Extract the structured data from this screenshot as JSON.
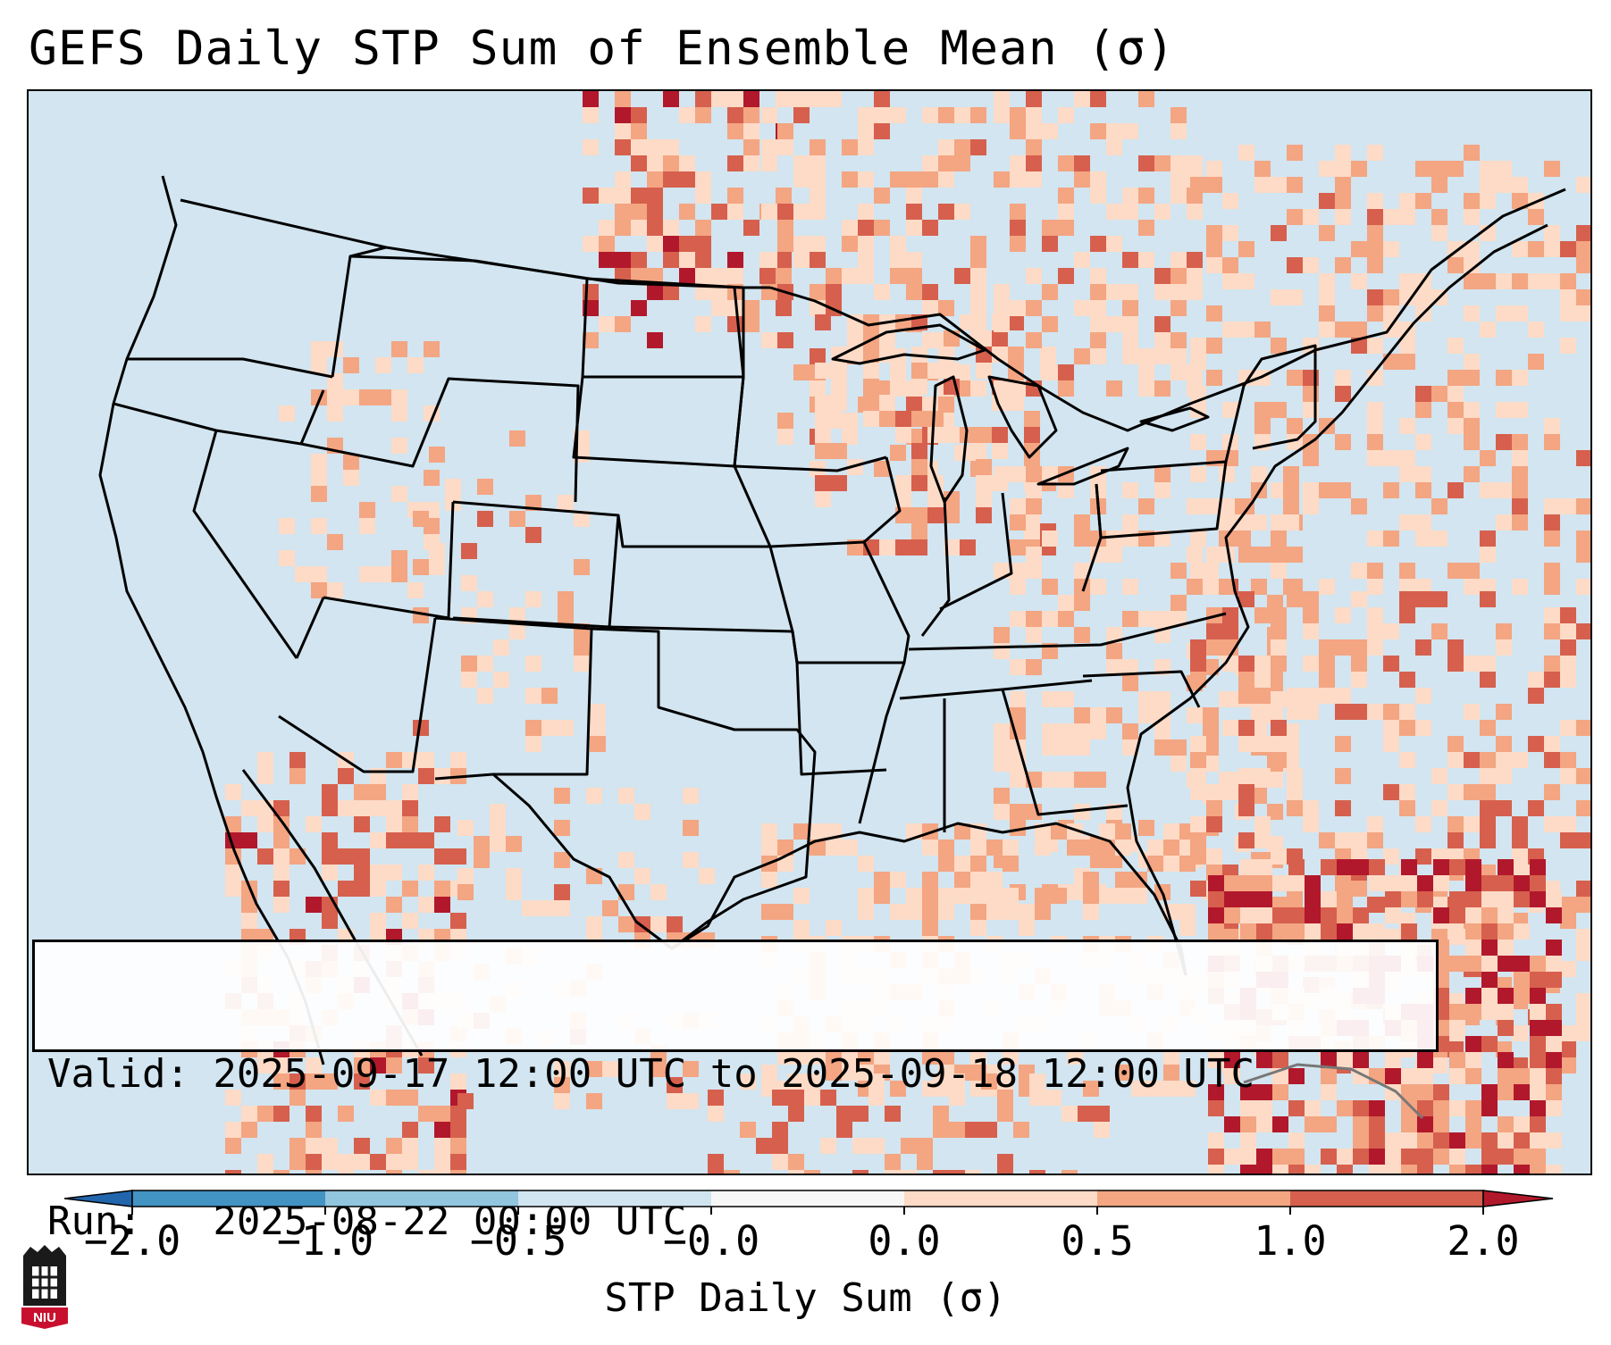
{
  "title": "GEFS Daily STP Sum of Ensemble Mean (σ)",
  "info": {
    "valid_line": "Valid: 2025-09-17 12:00 UTC to 2025-09-18 12:00 UTC",
    "run_line": "Run:   2025-08-22 00:00 UTC"
  },
  "colorbar": {
    "label": "STP Daily Sum (σ)",
    "ticks": [
      "−2.0",
      "−1.0",
      "−0.5",
      "−0.0",
      "0.0",
      "0.5",
      "1.0",
      "2.0"
    ],
    "colors": {
      "below": "#2166ac",
      "c1": "#4393c3",
      "c2": "#92c5de",
      "c3": "#d1e5f0",
      "c4": "#f7f7f7",
      "c5": "#fddbc7",
      "c6": "#f4a582",
      "c7": "#d6604d",
      "above": "#b2182b"
    }
  },
  "logo": {
    "text": "NIU",
    "icon": "niu-logo-icon"
  }
}
